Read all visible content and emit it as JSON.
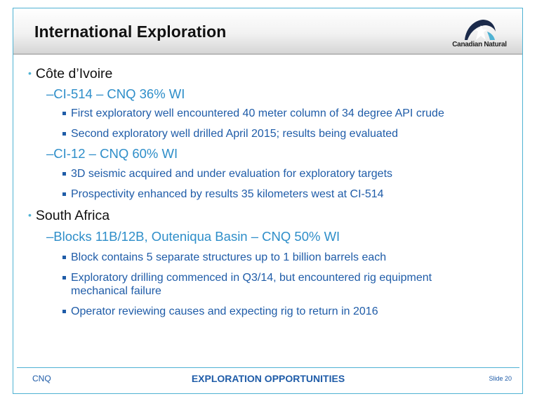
{
  "slide": {
    "title": "International Exploration",
    "logo_text": "Canadian Natural",
    "sections": [
      {
        "heading": "Côte d’Ivoire",
        "blocks": [
          {
            "label": "–CI-514 – CNQ 36% WI",
            "bullets": [
              "First exploratory well encountered 40 meter column of 34 degree API crude",
              "Second exploratory well drilled April 2015; results being evaluated"
            ]
          },
          {
            "label": "–CI-12 – CNQ 60% WI",
            "bullets": [
              "3D seismic acquired and under evaluation for exploratory targets",
              "Prospectivity enhanced by results 35 kilometers west at CI-514"
            ]
          }
        ]
      },
      {
        "heading": "South Africa",
        "blocks": [
          {
            "label": "–Blocks 11B/12B, Outeniqua Basin – CNQ 50% WI",
            "bullets": [
              "Block contains 5 separate structures up to 1 billion barrels each",
              "Exploratory drilling commenced in Q3/14, but encountered rig equipment mechanical failure",
              "Operator reviewing causes and expecting rig to return in 2016"
            ]
          }
        ]
      }
    ],
    "footer": {
      "left": "CNQ",
      "center": "EXPLORATION OPPORTUNITIES",
      "right": "Slide 20"
    },
    "colors": {
      "accent": "#4fb2d3",
      "level2_text": "#2e8ec9",
      "level3_text": "#1f5ca8"
    }
  }
}
